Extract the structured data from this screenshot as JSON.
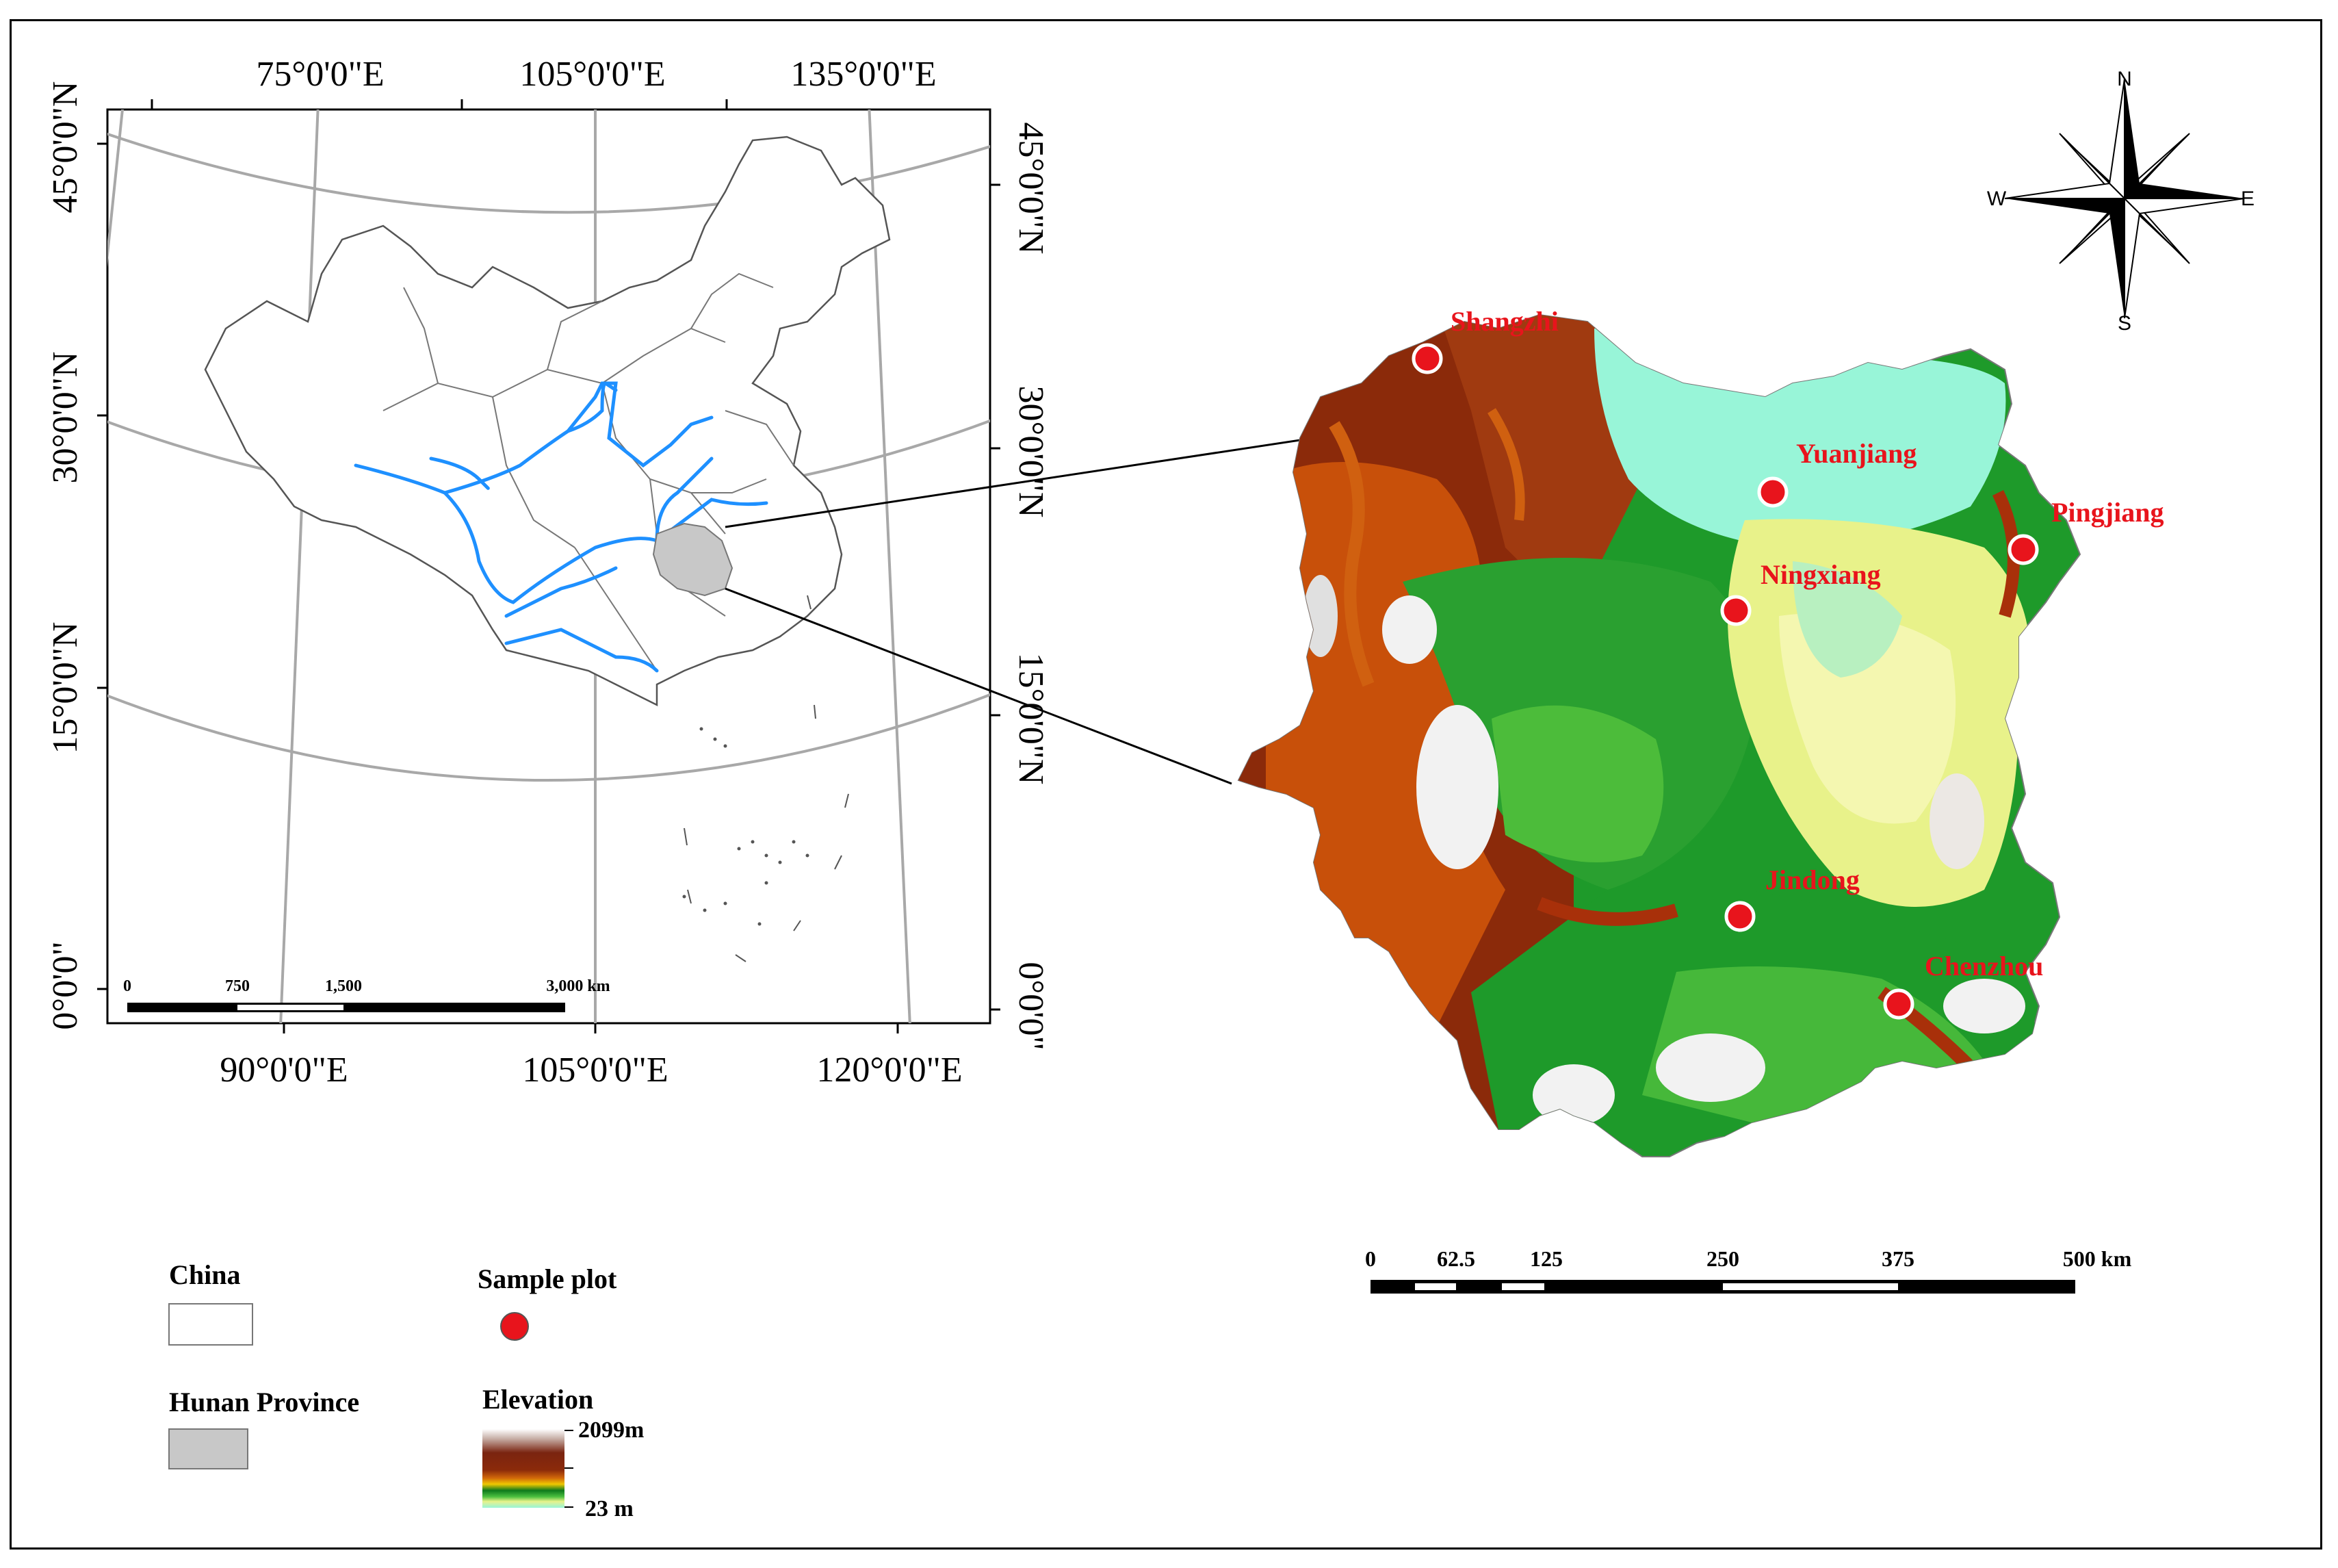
{
  "inset_map": {
    "top_longitudes": [
      "75°0'0\"E",
      "105°0'0\"E",
      "135°0'0\"E"
    ],
    "bottom_longitudes": [
      "90°0'0\"E",
      "105°0'0\"E",
      "120°0'0\"E"
    ],
    "left_latitudes": [
      "45°0'0\"N",
      "30°0'0\"N",
      "15°0'0\"N",
      "0°0'0\""
    ],
    "right_latitudes": [
      "45°0'0\"N",
      "30°0'0\"N",
      "15°0'0\"N",
      "0°0'0\""
    ],
    "scale_labels": [
      "0",
      "750",
      "1,500",
      "3,000 km"
    ]
  },
  "compass": {
    "north": "N",
    "south": "S",
    "east": "E",
    "west": "W"
  },
  "sample_sites": [
    {
      "name": "Shangzhi"
    },
    {
      "name": "Yuanjiang"
    },
    {
      "name": "Pingjiang"
    },
    {
      "name": "Ningxiang"
    },
    {
      "name": "Jindong"
    },
    {
      "name": "Chenzhou"
    }
  ],
  "main_scale_labels": [
    "0",
    "62.5",
    "125",
    "250",
    "375",
    "500 km"
  ],
  "legend": {
    "china_label": "China",
    "hunan_label": "Hunan Province",
    "sample_label": "Sample plot",
    "elevation_label": "Elevation",
    "elevation_max": "2099m",
    "elevation_min": "23 m"
  },
  "colors": {
    "sample_point": "#e8141c",
    "label_red": "#e8141c",
    "river_blue": "#1e90ff",
    "hunan_fill": "#c8c8c8",
    "lowland": "#98f5d8",
    "plain_yellow": "#f0f5a0",
    "forest_green": "#1e9a2a",
    "mountain_brown": "#8a2a10",
    "peak_white": "#f4f4f4"
  }
}
